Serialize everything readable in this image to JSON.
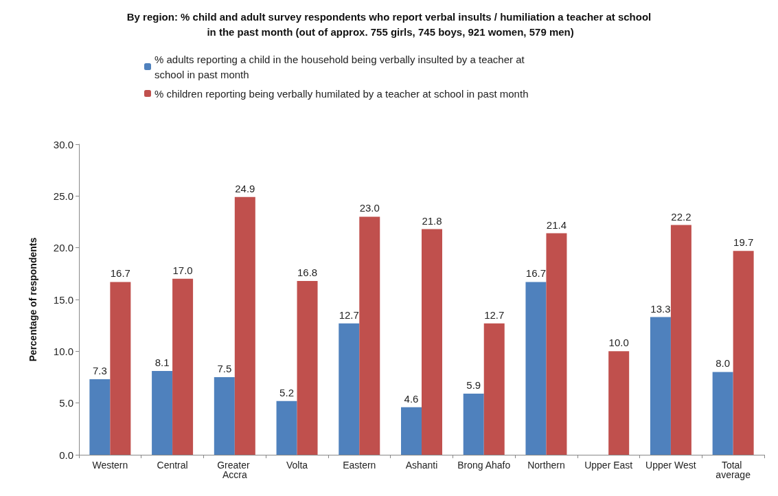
{
  "chart_data": {
    "type": "bar",
    "title": "By region: % child and adult survey respondents who report verbal insults / humiliation a teacher at school in the past month (out of approx. 755 girls, 745 boys, 921 women, 579 men)",
    "ylabel": "Percentage of respondents",
    "categories": [
      "Western",
      "Central",
      "Greater Accra",
      "Volta",
      "Eastern",
      "Ashanti",
      "Brong Ahafo",
      "Northern",
      "Upper East",
      "Upper West",
      "Total average"
    ],
    "series": [
      {
        "name": "% adults reporting a child in the household being verbally insulted by a teacher at school in past month",
        "color": "#4f81bd",
        "values": [
          7.3,
          8.1,
          7.5,
          5.2,
          12.7,
          4.6,
          5.9,
          16.7,
          null,
          13.3,
          8.0
        ],
        "value_labels": [
          "7.3",
          "8.1",
          "7.5",
          "5.2",
          "12.7",
          "4.6",
          "5.9",
          "16.7",
          null,
          "13.3",
          "8.0"
        ]
      },
      {
        "name": "% children reporting being verbally humilated by a teacher at school in past month",
        "color": "#c0504d",
        "values": [
          16.7,
          17.0,
          24.9,
          16.8,
          23.0,
          21.8,
          12.7,
          21.4,
          10.0,
          22.2,
          19.7
        ],
        "value_labels": [
          "16.7",
          "17.0",
          "24.9",
          "16.8",
          "23.0",
          "21.8",
          "12.7",
          "21.4",
          "10.0",
          "22.2",
          "19.7"
        ]
      }
    ],
    "ylim": [
      0,
      30
    ],
    "yticks": [
      {
        "value": 0,
        "label": "0.0"
      },
      {
        "value": 5,
        "label": "5.0"
      },
      {
        "value": 10,
        "label": "10.0"
      },
      {
        "value": 15,
        "label": "15.0"
      },
      {
        "value": 20,
        "label": "20.0"
      },
      {
        "value": 25,
        "label": "25.0"
      },
      {
        "value": 30,
        "label": "30.0"
      }
    ],
    "grid": false,
    "legend": "top"
  }
}
